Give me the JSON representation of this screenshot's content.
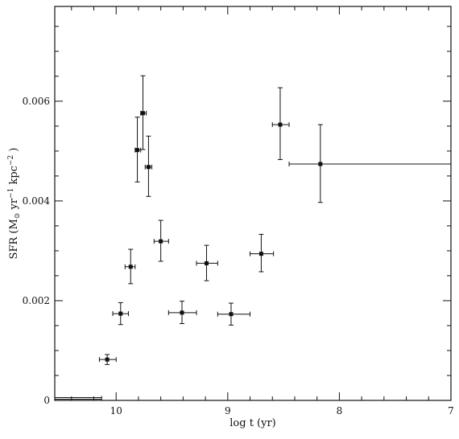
{
  "chart_data": {
    "type": "scatter",
    "xlabel": "log t (yr)",
    "ylabel_parts": {
      "main": "SFR (M",
      "sun": "⊙",
      "mid": " yr",
      "exp1": "−1",
      "mid2": " kpc",
      "exp2": "−2",
      "end": " )"
    },
    "xlim": [
      10.55,
      7.0
    ],
    "ylim": [
      0,
      0.0079
    ],
    "x_reversed": true,
    "x_ticks": [
      {
        "value": 10,
        "label": "10"
      },
      {
        "value": 9,
        "label": "9"
      },
      {
        "value": 8,
        "label": "8"
      },
      {
        "value": 7,
        "label": "7"
      }
    ],
    "y_ticks": [
      {
        "value": 0,
        "label": "0"
      },
      {
        "value": 0.002,
        "label": "0.002"
      },
      {
        "value": 0.004,
        "label": "0.004"
      },
      {
        "value": 0.006,
        "label": "0.006"
      }
    ],
    "grid": false,
    "points": [
      {
        "x": 10.08,
        "y": 0.00082,
        "xerr_lo": 10.15,
        "xerr_hi": 10.0,
        "yerr_lo": 0.00072,
        "yerr_hi": 0.00092
      },
      {
        "x": 9.96,
        "y": 0.00174,
        "xerr_lo": 10.03,
        "xerr_hi": 9.89,
        "yerr_lo": 0.00152,
        "yerr_hi": 0.00196
      },
      {
        "x": 9.87,
        "y": 0.00268,
        "xerr_lo": 9.92,
        "xerr_hi": 9.83,
        "yerr_lo": 0.00234,
        "yerr_hi": 0.00303
      },
      {
        "x": 9.81,
        "y": 0.00502,
        "xerr_lo": 9.83,
        "xerr_hi": 9.78,
        "yerr_lo": 0.00438,
        "yerr_hi": 0.00568
      },
      {
        "x": 9.76,
        "y": 0.00576,
        "xerr_lo": 9.78,
        "xerr_hi": 9.73,
        "yerr_lo": 0.00503,
        "yerr_hi": 0.00651
      },
      {
        "x": 9.71,
        "y": 0.00468,
        "xerr_lo": 9.74,
        "xerr_hi": 9.68,
        "yerr_lo": 0.00409,
        "yerr_hi": 0.0053
      },
      {
        "x": 9.6,
        "y": 0.00319,
        "xerr_lo": 9.66,
        "xerr_hi": 9.53,
        "yerr_lo": 0.00279,
        "yerr_hi": 0.00361
      },
      {
        "x": 9.41,
        "y": 0.00176,
        "xerr_lo": 9.53,
        "xerr_hi": 9.28,
        "yerr_lo": 0.00154,
        "yerr_hi": 0.00199
      },
      {
        "x": 9.19,
        "y": 0.00275,
        "xerr_lo": 9.28,
        "xerr_hi": 9.09,
        "yerr_lo": 0.0024,
        "yerr_hi": 0.00311
      },
      {
        "x": 8.97,
        "y": 0.00173,
        "xerr_lo": 9.09,
        "xerr_hi": 8.8,
        "yerr_lo": 0.00151,
        "yerr_hi": 0.00195
      },
      {
        "x": 8.7,
        "y": 0.00294,
        "xerr_lo": 8.8,
        "xerr_hi": 8.59,
        "yerr_lo": 0.00258,
        "yerr_hi": 0.00333
      },
      {
        "x": 8.53,
        "y": 0.00553,
        "xerr_lo": 8.6,
        "xerr_hi": 8.45,
        "yerr_lo": 0.00483,
        "yerr_hi": 0.00627
      },
      {
        "x": 8.17,
        "y": 0.00474,
        "xerr_lo": 8.45,
        "xerr_hi": 7.0,
        "yerr_lo": 0.00397,
        "yerr_hi": 0.00553
      }
    ],
    "extra_segments": [
      {
        "x0": 10.55,
        "x1": 10.13,
        "y": 4e-05
      }
    ]
  }
}
